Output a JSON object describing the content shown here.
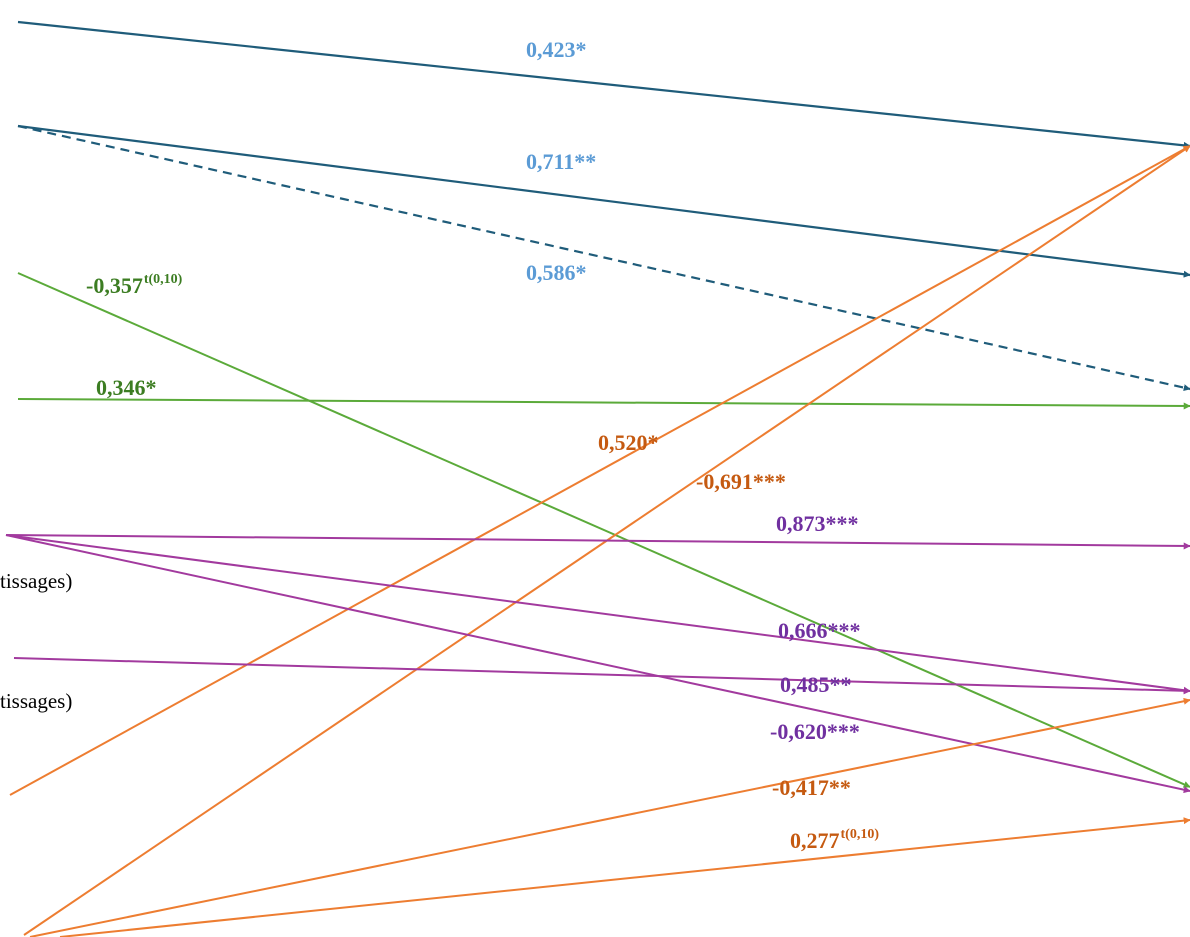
{
  "colors": {
    "blue_line": "#1F5C7A",
    "blue_label": "#5B9BD5",
    "green_line": "#5BAA3A",
    "green_label": "#3C7D22",
    "orange_line": "#ED7D31",
    "orange_label": "#C55A11",
    "purple_line": "#A23A9E",
    "purple_label": "#7030A0",
    "text": "#000000"
  },
  "side_labels": [
    {
      "id": "side-1",
      "text": "tissages)"
    },
    {
      "id": "side-2",
      "text": "tissages)"
    }
  ],
  "paths": [
    {
      "id": "blue-1",
      "color": "blue",
      "dashed": false,
      "label": "0,423*",
      "sup": ""
    },
    {
      "id": "blue-2",
      "color": "blue",
      "dashed": false,
      "label": "0,711**",
      "sup": ""
    },
    {
      "id": "blue-3",
      "color": "blue",
      "dashed": true,
      "label": "0,586*",
      "sup": ""
    },
    {
      "id": "green-1",
      "color": "green",
      "dashed": false,
      "label": "-0,357",
      "sup": "t(0,10)"
    },
    {
      "id": "green-2",
      "color": "green",
      "dashed": false,
      "label": "0,346*",
      "sup": ""
    },
    {
      "id": "orange-1",
      "color": "orange",
      "dashed": false,
      "label": "0,520*",
      "sup": ""
    },
    {
      "id": "orange-2",
      "color": "orange",
      "dashed": false,
      "label": "-0,691***",
      "sup": ""
    },
    {
      "id": "purple-1",
      "color": "purple",
      "dashed": false,
      "label": "0,873***",
      "sup": ""
    },
    {
      "id": "purple-2",
      "color": "purple",
      "dashed": false,
      "label": "0,666***",
      "sup": ""
    },
    {
      "id": "purple-3",
      "color": "purple",
      "dashed": false,
      "label": "0,485**",
      "sup": ""
    },
    {
      "id": "purple-4",
      "color": "purple",
      "dashed": false,
      "label": "-0,620***",
      "sup": ""
    },
    {
      "id": "orange-3",
      "color": "orange",
      "dashed": false,
      "label": "-0,417**",
      "sup": ""
    },
    {
      "id": "orange-4",
      "color": "orange",
      "dashed": false,
      "label": "0,277",
      "sup": "t(0,10)"
    }
  ]
}
